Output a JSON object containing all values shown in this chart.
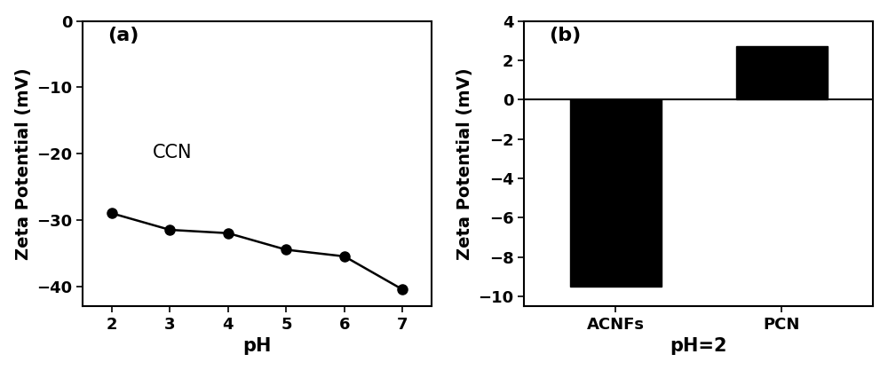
{
  "panel_a": {
    "x": [
      2,
      3,
      4,
      5,
      6,
      7
    ],
    "y": [
      -29.0,
      -31.5,
      -32.0,
      -34.5,
      -35.5,
      -40.5
    ],
    "xlabel": "pH",
    "ylabel": "Zeta Potential (mV)",
    "label": "(a)",
    "annotation": "CCN",
    "ylim": [
      -43,
      0
    ],
    "xlim": [
      1.5,
      7.5
    ],
    "yticks": [
      0,
      -10,
      -20,
      -30,
      -40
    ],
    "xticks": [
      2,
      3,
      4,
      5,
      6,
      7
    ]
  },
  "panel_b": {
    "categories": [
      "ACNFs",
      "PCN"
    ],
    "values": [
      -9.5,
      2.7
    ],
    "xlabel": "pH=2",
    "ylabel": "Zeta Potential (mV)",
    "label": "(b)",
    "ylim": [
      -10.5,
      4
    ],
    "yticks": [
      -10,
      -8,
      -6,
      -4,
      -2,
      0,
      2,
      4
    ]
  },
  "bar_color": "#000000",
  "line_color": "#000000",
  "marker_color": "#000000",
  "background_color": "#ffffff",
  "label_font_size": 14,
  "tick_font_size": 13,
  "annot_font_size": 15
}
